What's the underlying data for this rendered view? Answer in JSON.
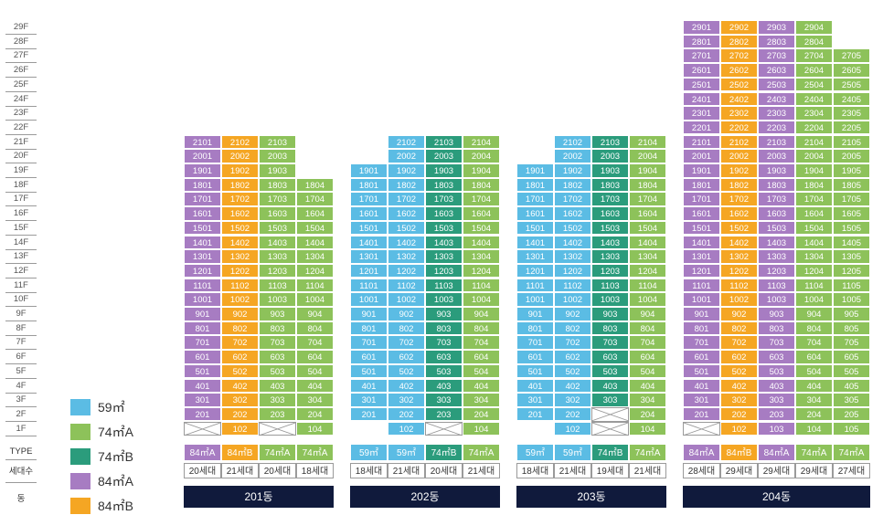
{
  "colors": {
    "59": "#5bbce4",
    "74A": "#8dc25a",
    "74B": "#2b9c7c",
    "84A": "#a77cc2",
    "84B": "#f5a623"
  },
  "row_labels": {
    "type": "TYPE",
    "count": "세대수",
    "building": "동"
  },
  "floors": [
    "29F",
    "28F",
    "27F",
    "26F",
    "25F",
    "24F",
    "23F",
    "22F",
    "21F",
    "20F",
    "19F",
    "18F",
    "17F",
    "16F",
    "15F",
    "14F",
    "13F",
    "12F",
    "11F",
    "10F",
    "9F",
    "8F",
    "7F",
    "6F",
    "5F",
    "4F",
    "3F",
    "2F",
    "1F"
  ],
  "legend": [
    {
      "label": "59㎡",
      "key": "59"
    },
    {
      "label": "74㎡A",
      "key": "74A"
    },
    {
      "label": "74㎡B",
      "key": "74B"
    },
    {
      "label": "84㎡A",
      "key": "84A"
    },
    {
      "label": "84㎡B",
      "key": "84B"
    }
  ],
  "buildings": [
    {
      "name": "201동",
      "lines": [
        {
          "type_label": "84㎡A",
          "key": "84A",
          "top": 21,
          "bottom": 2,
          "empty_1f": true,
          "count": "20세대"
        },
        {
          "type_label": "84㎡B",
          "key": "84B",
          "top": 21,
          "bottom": 1,
          "empty_1f": false,
          "count": "21세대"
        },
        {
          "type_label": "74㎡A",
          "key": "74A",
          "top": 21,
          "bottom": 2,
          "empty_1f": true,
          "count": "20세대"
        },
        {
          "type_label": "74㎡A",
          "key": "74A",
          "top": 18,
          "bottom": 1,
          "empty_1f": false,
          "count": "18세대"
        }
      ]
    },
    {
      "name": "202동",
      "lines": [
        {
          "type_label": "59㎡",
          "key": "59",
          "top": 19,
          "bottom": 2,
          "empty_1f": false,
          "count": "18세대"
        },
        {
          "type_label": "59㎡",
          "key": "59",
          "top": 21,
          "bottom": 1,
          "empty_1f": false,
          "count": "21세대"
        },
        {
          "type_label": "74㎡B",
          "key": "74B",
          "top": 21,
          "bottom": 2,
          "empty_1f": true,
          "count": "20세대"
        },
        {
          "type_label": "74㎡A",
          "key": "74A",
          "top": 21,
          "bottom": 1,
          "empty_1f": false,
          "count": "21세대"
        }
      ]
    },
    {
      "name": "203동",
      "lines": [
        {
          "type_label": "59㎡",
          "key": "59",
          "top": 19,
          "bottom": 2,
          "empty_1f": false,
          "count": "18세대"
        },
        {
          "type_label": "59㎡",
          "key": "59",
          "top": 21,
          "bottom": 1,
          "empty_1f": false,
          "count": "21세대"
        },
        {
          "type_label": "74㎡B",
          "key": "74B",
          "top": 21,
          "bottom": 3,
          "empty_1f": true,
          "empty_2f": true,
          "count": "19세대"
        },
        {
          "type_label": "74㎡A",
          "key": "74A",
          "top": 21,
          "bottom": 1,
          "empty_1f": false,
          "count": "21세대"
        }
      ]
    },
    {
      "name": "204동",
      "lines": [
        {
          "type_label": "84㎡A",
          "key": "84A",
          "top": 29,
          "bottom": 2,
          "empty_1f": true,
          "count": "28세대"
        },
        {
          "type_label": "84㎡B",
          "key": "84B",
          "top": 29,
          "bottom": 1,
          "empty_1f": false,
          "count": "29세대"
        },
        {
          "type_label": "84㎡A",
          "key": "84A",
          "top": 29,
          "bottom": 1,
          "empty_1f": false,
          "count": "29세대"
        },
        {
          "type_label": "74㎡A",
          "key": "74A",
          "top": 29,
          "bottom": 1,
          "empty_1f": false,
          "count": "29세대"
        },
        {
          "type_label": "74㎡A",
          "key": "74A",
          "top": 27,
          "bottom": 1,
          "empty_1f": false,
          "count": "27세대"
        }
      ]
    }
  ]
}
